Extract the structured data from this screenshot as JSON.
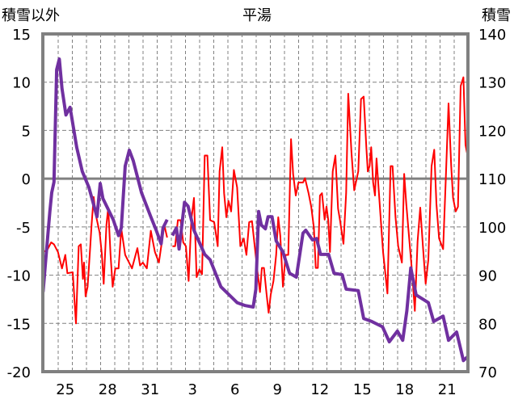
{
  "chart_data": {
    "type": "line",
    "title": "平湯",
    "ylabel_left": "積雪以外",
    "ylabel_right": "積雪",
    "xunit": "days since the 25th, 00:00",
    "xlim": [
      -1.1,
      28.97
    ],
    "ylim_left": [
      -20,
      15
    ],
    "ylim_right": [
      70,
      140
    ],
    "y_ticks_left": [
      15,
      10,
      5,
      0,
      -5,
      -10,
      -15,
      -20
    ],
    "y_ticks_right": [
      140,
      130,
      120,
      110,
      100,
      90,
      80,
      70
    ],
    "x_tick_labels": [
      "25",
      "28",
      "31",
      "3",
      "6",
      "9",
      "12",
      "15",
      "18",
      "21"
    ],
    "x_tick_positions": [
      0.5,
      3.5,
      6.5,
      9.5,
      12.5,
      15.5,
      18.5,
      21.5,
      24.5,
      27.5
    ],
    "grid": true,
    "colors": {
      "other": "#ff0000",
      "snow": "#7030a0",
      "frame": "#808080"
    },
    "series": [
      {
        "name": "積雪以外",
        "axis": "left",
        "points": [
          [
            -1.07,
            -7.6
          ],
          [
            -0.78,
            -7.4
          ],
          [
            -0.5,
            -6.6
          ],
          [
            -0.3,
            -6.8
          ],
          [
            -0.02,
            -7.6
          ],
          [
            0.27,
            -9.3
          ],
          [
            0.5,
            -7.9
          ],
          [
            0.65,
            -9.8
          ],
          [
            1.03,
            -9.7
          ],
          [
            1.26,
            -15.0
          ],
          [
            1.45,
            -7.0
          ],
          [
            1.6,
            -6.8
          ],
          [
            1.75,
            -10.4
          ],
          [
            1.83,
            -8.7
          ],
          [
            1.94,
            -12.2
          ],
          [
            2.08,
            -11.2
          ],
          [
            2.27,
            -7.0
          ],
          [
            2.36,
            -4.8
          ],
          [
            2.51,
            -1.9
          ],
          [
            2.65,
            -3.7
          ],
          [
            2.93,
            -5.6
          ],
          [
            3.09,
            -7.9
          ],
          [
            3.22,
            -10.9
          ],
          [
            3.41,
            -4.8
          ],
          [
            3.54,
            -3.0
          ],
          [
            3.7,
            -7.9
          ],
          [
            3.85,
            -11.2
          ],
          [
            4.04,
            -9.3
          ],
          [
            4.27,
            -9.3
          ],
          [
            4.46,
            -5.2
          ],
          [
            4.74,
            -7.9
          ],
          [
            5.22,
            -9.3
          ],
          [
            5.6,
            -7.2
          ],
          [
            5.79,
            -9.0
          ],
          [
            5.98,
            -8.7
          ],
          [
            6.27,
            -9.3
          ],
          [
            6.55,
            -5.4
          ],
          [
            6.84,
            -7.6
          ],
          [
            7.12,
            -8.7
          ],
          [
            7.5,
            -4.8
          ],
          [
            7.7,
            -6.1
          ],
          null,
          [
            8.08,
            -7.0
          ],
          [
            8.27,
            -7.0
          ],
          [
            8.46,
            -4.3
          ],
          [
            8.65,
            -4.3
          ],
          [
            8.84,
            -6.6
          ],
          [
            9.03,
            -7.0
          ],
          [
            9.22,
            -10.6
          ],
          [
            9.41,
            -4.3
          ],
          [
            9.6,
            -2.0
          ],
          [
            9.79,
            -10.2
          ],
          [
            9.98,
            -9.4
          ],
          [
            10.17,
            -9.9
          ],
          [
            10.36,
            2.4
          ],
          [
            10.55,
            2.4
          ],
          [
            10.74,
            -4.3
          ],
          [
            11.03,
            -4.5
          ],
          [
            11.28,
            -7.0
          ],
          [
            11.41,
            0.75
          ],
          [
            11.6,
            3.25
          ],
          [
            11.73,
            -1.5
          ],
          [
            11.89,
            -4.0
          ],
          [
            12.04,
            -2.3
          ],
          [
            12.23,
            -3.4
          ],
          [
            12.42,
            0.9
          ],
          [
            12.65,
            -0.9
          ],
          [
            12.88,
            -7.0
          ],
          [
            13.12,
            -6.2
          ],
          [
            13.31,
            -7.9
          ],
          [
            13.5,
            -4.5
          ],
          [
            13.7,
            -4.4
          ],
          [
            13.98,
            -8.1
          ],
          [
            14.08,
            -9.5
          ],
          [
            14.27,
            -11.75
          ],
          [
            14.4,
            -9.25
          ],
          [
            14.55,
            -9.25
          ],
          [
            14.74,
            -12.0
          ],
          [
            14.88,
            -13.9
          ],
          [
            15.03,
            -12.0
          ],
          [
            15.22,
            -10.6
          ],
          [
            15.41,
            -7.9
          ],
          [
            15.56,
            -4.0
          ],
          [
            15.7,
            -5.9
          ],
          [
            15.89,
            -11.2
          ],
          [
            16.08,
            -7.9
          ],
          [
            16.27,
            -7.9
          ],
          [
            16.46,
            4.1
          ],
          [
            16.61,
            0.5
          ],
          [
            16.8,
            -1.75
          ],
          [
            16.99,
            -0.4
          ],
          [
            17.31,
            -0.4
          ],
          [
            17.45,
            0.05
          ],
          [
            17.7,
            -1.5
          ],
          [
            17.89,
            -2.9
          ],
          [
            18.08,
            -5.1
          ],
          [
            18.21,
            -9.25
          ],
          [
            18.36,
            -9.25
          ],
          [
            18.51,
            -1.75
          ],
          [
            18.65,
            -1.5
          ],
          [
            18.84,
            -4.25
          ],
          [
            18.97,
            -2.9
          ],
          [
            19.09,
            -4.25
          ],
          [
            19.22,
            -7.6
          ],
          [
            19.41,
            0.75
          ],
          [
            19.6,
            2.4
          ],
          [
            19.79,
            -3.1
          ],
          [
            19.92,
            -4.25
          ],
          [
            20.17,
            -6.75
          ],
          [
            20.36,
            -1.5
          ],
          [
            20.51,
            8.8
          ],
          [
            20.74,
            2.7
          ],
          [
            20.93,
            -1.2
          ],
          [
            21.22,
            0.75
          ],
          [
            21.41,
            8.25
          ],
          [
            21.6,
            8.5
          ],
          [
            21.79,
            3.25
          ],
          [
            21.89,
            0.75
          ],
          [
            22.02,
            1.3
          ],
          [
            22.13,
            3.25
          ],
          [
            22.27,
            -0.4
          ],
          [
            22.4,
            -1.75
          ],
          [
            22.51,
            2.1
          ],
          [
            22.78,
            -3.7
          ],
          [
            22.97,
            -7.6
          ],
          [
            23.28,
            -11.9
          ],
          [
            23.5,
            1.3
          ],
          [
            23.64,
            1.3
          ],
          [
            23.85,
            -4.0
          ],
          [
            24.04,
            -7.0
          ],
          [
            24.3,
            -8.7
          ],
          [
            24.46,
            0.5
          ],
          [
            24.61,
            -2.6
          ],
          [
            24.8,
            -5.9
          ],
          [
            25.03,
            -9.8
          ],
          [
            25.22,
            -13.7
          ],
          [
            25.41,
            -6.5
          ],
          [
            25.6,
            -3.0
          ],
          [
            25.79,
            -7.0
          ],
          [
            25.98,
            -10.9
          ],
          [
            26.17,
            -8.4
          ],
          [
            26.4,
            1.3
          ],
          [
            26.59,
            3.0
          ],
          [
            26.74,
            -2.6
          ],
          [
            26.93,
            -6.2
          ],
          [
            27.22,
            -7.3
          ],
          [
            27.41,
            0.2
          ],
          [
            27.6,
            7.8
          ],
          [
            27.79,
            1.3
          ],
          [
            27.92,
            -2.0
          ],
          [
            28.11,
            -3.4
          ],
          [
            28.27,
            -2.9
          ],
          [
            28.46,
            9.6
          ],
          [
            28.65,
            10.5
          ],
          [
            28.8,
            3.5
          ],
          [
            28.9,
            2.7
          ],
          [
            28.99,
            7.1
          ]
        ]
      },
      {
        "name": "積雪",
        "axis": "right",
        "points": [
          [
            -1.07,
            86.5
          ],
          [
            -0.88,
            93.2
          ],
          [
            -0.59,
            103.2
          ],
          [
            -0.46,
            107.1
          ],
          [
            -0.3,
            109.3
          ],
          [
            -0.11,
            132.6
          ],
          [
            0.08,
            134.8
          ],
          [
            0.27,
            128.7
          ],
          [
            0.55,
            123.2
          ],
          [
            0.84,
            124.8
          ],
          [
            1.31,
            116.5
          ],
          [
            1.7,
            111.5
          ],
          [
            2.17,
            108.2
          ],
          [
            2.74,
            102.1
          ],
          [
            2.97,
            109.0
          ],
          [
            3.16,
            105.9
          ],
          [
            3.89,
            101.5
          ],
          [
            4.27,
            98.2
          ],
          [
            4.46,
            99.8
          ],
          [
            4.74,
            112.6
          ],
          [
            5.03,
            115.9
          ],
          [
            5.31,
            113.7
          ],
          [
            5.89,
            107.1
          ],
          [
            6.55,
            102.1
          ],
          [
            6.93,
            99.3
          ],
          [
            7.28,
            96.5
          ],
          [
            7.41,
            99.8
          ],
          [
            7.7,
            101.5
          ],
          null,
          [
            8.08,
            98.2
          ],
          [
            8.36,
            99.8
          ],
          [
            8.55,
            95.4
          ],
          [
            8.93,
            105.1
          ],
          [
            9.18,
            104.3
          ],
          [
            9.6,
            99.3
          ],
          [
            10.36,
            94.3
          ],
          [
            10.74,
            93.2
          ],
          [
            11.5,
            87.6
          ],
          [
            12.27,
            85.4
          ],
          [
            12.65,
            84.3
          ],
          [
            13.22,
            83.7
          ],
          [
            13.79,
            83.4
          ],
          [
            13.98,
            87.1
          ],
          [
            14.17,
            103.2
          ],
          [
            14.36,
            100.4
          ],
          [
            14.65,
            99.6
          ],
          [
            14.84,
            102.1
          ],
          [
            15.12,
            102.1
          ],
          [
            15.41,
            97.1
          ],
          [
            15.89,
            94.8
          ],
          [
            16.36,
            90.4
          ],
          [
            16.84,
            89.6
          ],
          [
            17.31,
            98.7
          ],
          [
            17.5,
            99.3
          ],
          [
            17.98,
            97.3
          ],
          [
            18.27,
            97.6
          ],
          [
            18.55,
            94.3
          ],
          [
            19.12,
            94.3
          ],
          [
            19.5,
            90.4
          ],
          [
            20.08,
            90.1
          ],
          [
            20.36,
            87.1
          ],
          [
            21.22,
            86.8
          ],
          [
            21.6,
            81.0
          ],
          [
            22.17,
            80.4
          ],
          [
            22.93,
            79.3
          ],
          [
            23.41,
            76.2
          ],
          [
            23.98,
            78.4
          ],
          [
            24.36,
            76.5
          ],
          [
            24.65,
            82.6
          ],
          [
            24.93,
            91.5
          ],
          [
            25.31,
            85.9
          ],
          [
            26.17,
            84.3
          ],
          [
            26.55,
            80.4
          ],
          [
            27.22,
            81.5
          ],
          [
            27.6,
            76.5
          ],
          [
            28.17,
            78.2
          ],
          [
            28.36,
            75.9
          ],
          [
            28.65,
            72.3
          ],
          [
            28.99,
            73.2
          ]
        ]
      }
    ]
  }
}
